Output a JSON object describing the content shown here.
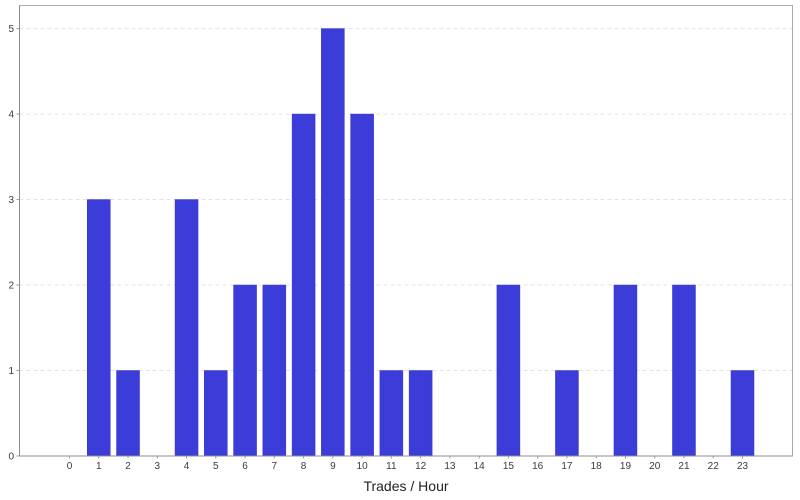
{
  "chart_data": {
    "type": "bar",
    "title": "",
    "xlabel": "Trades / Hour",
    "ylabel": "",
    "categories": [
      "0",
      "1",
      "2",
      "3",
      "4",
      "5",
      "6",
      "7",
      "8",
      "9",
      "10",
      "11",
      "12",
      "13",
      "14",
      "15",
      "16",
      "17",
      "18",
      "19",
      "20",
      "21",
      "22",
      "23"
    ],
    "values": [
      0,
      3,
      1,
      0,
      3,
      1,
      2,
      2,
      4,
      5,
      4,
      1,
      1,
      0,
      0,
      2,
      0,
      1,
      0,
      2,
      0,
      2,
      0,
      1
    ],
    "ylim": [
      0,
      5.27
    ],
    "yticks": [
      0,
      1,
      2,
      3,
      4,
      5
    ],
    "grid": "horizontal-dashed",
    "legend": "none",
    "colors": {
      "bar": "#3C3CD9",
      "bar_edge": "#3434C8",
      "grid": "#E3E3E3",
      "plot_border": "#ABABAB",
      "axis": "#8C8C8C",
      "tick": "#9C9C9C",
      "tick_label": "#3A3A3A",
      "axis_label": "#222222",
      "background": "#FFFFFF"
    }
  }
}
